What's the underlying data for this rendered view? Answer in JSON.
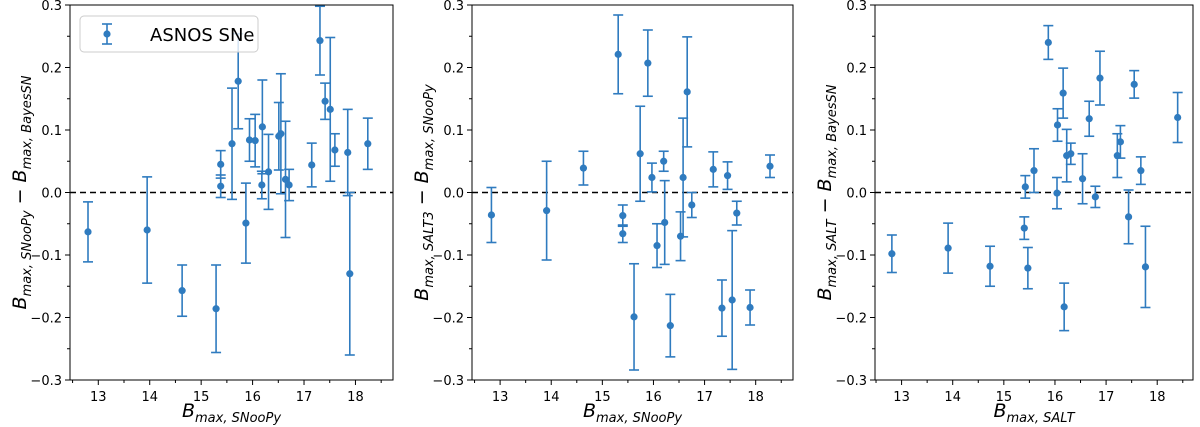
{
  "chart_data": [
    {
      "type": "scatter",
      "error_bars": true,
      "xlabel": [
        {
          "t": "B"
        },
        {
          "s": "max, SNooPy"
        }
      ],
      "ylabel": [
        {
          "t": "B"
        },
        {
          "s": "max, SNooPy"
        },
        {
          "t": " − B"
        },
        {
          "s": "max, BayesSN"
        }
      ],
      "xlim": [
        12.45,
        18.73
      ],
      "ylim": [
        -0.3,
        0.3
      ],
      "xticks": [
        "13",
        "14",
        "15",
        "16",
        "17",
        "18"
      ],
      "yticks": [
        "−0.3",
        "−0.2",
        "−0.1",
        "0.0",
        "0.1",
        "0.2",
        "0.3"
      ],
      "reference_line": 0.0,
      "legend": {
        "label": "ASNOS SNe",
        "placement": "top-left"
      },
      "color": "#2f7bbf",
      "series": [
        {
          "name": "ASNOS SNe",
          "points": [
            [
              12.8,
              -0.063,
              0.048
            ],
            [
              13.95,
              -0.06,
              0.085
            ],
            [
              14.63,
              -0.157,
              0.041
            ],
            [
              15.29,
              -0.186,
              0.07
            ],
            [
              15.38,
              0.045,
              0.022
            ],
            [
              15.38,
              0.01,
              0.018
            ],
            [
              15.6,
              0.078,
              0.089
            ],
            [
              15.72,
              0.178,
              0.076
            ],
            [
              15.87,
              -0.049,
              0.064
            ],
            [
              15.94,
              0.084,
              0.034
            ],
            [
              16.05,
              0.083,
              0.042
            ],
            [
              16.18,
              0.012,
              0.022
            ],
            [
              16.19,
              0.105,
              0.075
            ],
            [
              16.31,
              0.033,
              0.06
            ],
            [
              16.51,
              0.09,
              0.054
            ],
            [
              16.55,
              0.094,
              0.096
            ],
            [
              16.64,
              0.021,
              0.093
            ],
            [
              16.71,
              0.012,
              0.025
            ],
            [
              17.15,
              0.044,
              0.035
            ],
            [
              17.31,
              0.243,
              0.055
            ],
            [
              17.41,
              0.146,
              0.029
            ],
            [
              17.51,
              0.133,
              0.115
            ],
            [
              17.6,
              0.068,
              0.026
            ],
            [
              17.85,
              0.064,
              0.069
            ],
            [
              17.89,
              -0.13,
              0.13
            ],
            [
              18.24,
              0.078,
              0.041
            ]
          ]
        }
      ]
    },
    {
      "type": "scatter",
      "error_bars": true,
      "xlabel": [
        {
          "t": "B"
        },
        {
          "s": "max, SNooPy"
        }
      ],
      "ylabel": [
        {
          "t": "B"
        },
        {
          "s": "max, SALT3"
        },
        {
          "t": " − B"
        },
        {
          "s": "max, SNooPy"
        }
      ],
      "xlim": [
        12.45,
        18.73
      ],
      "ylim": [
        -0.3,
        0.3
      ],
      "xticks": [
        "13",
        "14",
        "15",
        "16",
        "17",
        "18"
      ],
      "yticks": [
        "−0.3",
        "−0.2",
        "−0.1",
        "0.0",
        "0.1",
        "0.2",
        "0.3"
      ],
      "reference_line": 0.0,
      "color": "#2f7bbf",
      "series": [
        {
          "points": [
            [
              12.83,
              -0.036,
              0.044
            ],
            [
              13.91,
              -0.029,
              0.079
            ],
            [
              14.63,
              0.039,
              0.027
            ],
            [
              15.31,
              0.221,
              0.063
            ],
            [
              15.4,
              -0.037,
              0.017
            ],
            [
              15.4,
              -0.066,
              0.014
            ],
            [
              15.62,
              -0.199,
              0.085
            ],
            [
              15.74,
              0.062,
              0.076
            ],
            [
              15.89,
              0.207,
              0.053
            ],
            [
              15.97,
              0.024,
              0.023
            ],
            [
              16.07,
              -0.085,
              0.035
            ],
            [
              16.2,
              0.05,
              0.016
            ],
            [
              16.22,
              -0.048,
              0.067
            ],
            [
              16.33,
              -0.213,
              0.05
            ],
            [
              16.53,
              -0.07,
              0.039
            ],
            [
              16.58,
              0.024,
              0.095
            ],
            [
              16.66,
              0.161,
              0.088
            ],
            [
              16.75,
              -0.02,
              0.02
            ],
            [
              17.17,
              0.037,
              0.028
            ],
            [
              17.34,
              -0.185,
              0.045
            ],
            [
              17.45,
              0.027,
              0.022
            ],
            [
              17.54,
              -0.172,
              0.111
            ],
            [
              17.63,
              -0.033,
              0.019
            ],
            [
              17.89,
              -0.184,
              0.028
            ],
            [
              18.28,
              0.042,
              0.018
            ]
          ]
        }
      ]
    },
    {
      "type": "scatter",
      "error_bars": true,
      "xlabel": [
        {
          "t": "B"
        },
        {
          "s": "max, SALT"
        }
      ],
      "ylabel": [
        {
          "t": "B"
        },
        {
          "s": "max, SALT"
        },
        {
          "t": " − B"
        },
        {
          "s": "max, BayesSN"
        }
      ],
      "xlim": [
        12.48,
        18.7
      ],
      "ylim": [
        -0.3,
        0.3
      ],
      "xticks": [
        "13",
        "14",
        "15",
        "16",
        "17",
        "18"
      ],
      "yticks": [
        "−0.3",
        "−0.2",
        "−0.1",
        "0.0",
        "0.1",
        "0.2",
        "0.3"
      ],
      "reference_line": 0.0,
      "color": "#2f7bbf",
      "series": [
        {
          "points": [
            [
              12.81,
              -0.098,
              0.03
            ],
            [
              13.91,
              -0.089,
              0.04
            ],
            [
              14.73,
              -0.118,
              0.032
            ],
            [
              15.4,
              -0.057,
              0.018
            ],
            [
              15.42,
              0.009,
              0.018
            ],
            [
              15.47,
              -0.121,
              0.033
            ],
            [
              15.59,
              0.035,
              0.035
            ],
            [
              15.87,
              0.24,
              0.027
            ],
            [
              16.04,
              -0.001,
              0.025
            ],
            [
              16.05,
              0.108,
              0.026
            ],
            [
              16.16,
              0.159,
              0.04
            ],
            [
              16.18,
              -0.183,
              0.038
            ],
            [
              16.23,
              0.059,
              0.042
            ],
            [
              16.31,
              0.062,
              0.017
            ],
            [
              16.54,
              0.022,
              0.04
            ],
            [
              16.67,
              0.118,
              0.028
            ],
            [
              16.79,
              -0.007,
              0.017
            ],
            [
              16.88,
              0.183,
              0.043
            ],
            [
              17.22,
              0.059,
              0.035
            ],
            [
              17.28,
              0.081,
              0.026
            ],
            [
              17.44,
              -0.039,
              0.043
            ],
            [
              17.55,
              0.173,
              0.022
            ],
            [
              17.68,
              0.035,
              0.022
            ],
            [
              17.77,
              -0.119,
              0.065
            ],
            [
              18.4,
              0.12,
              0.04
            ]
          ]
        }
      ]
    }
  ]
}
